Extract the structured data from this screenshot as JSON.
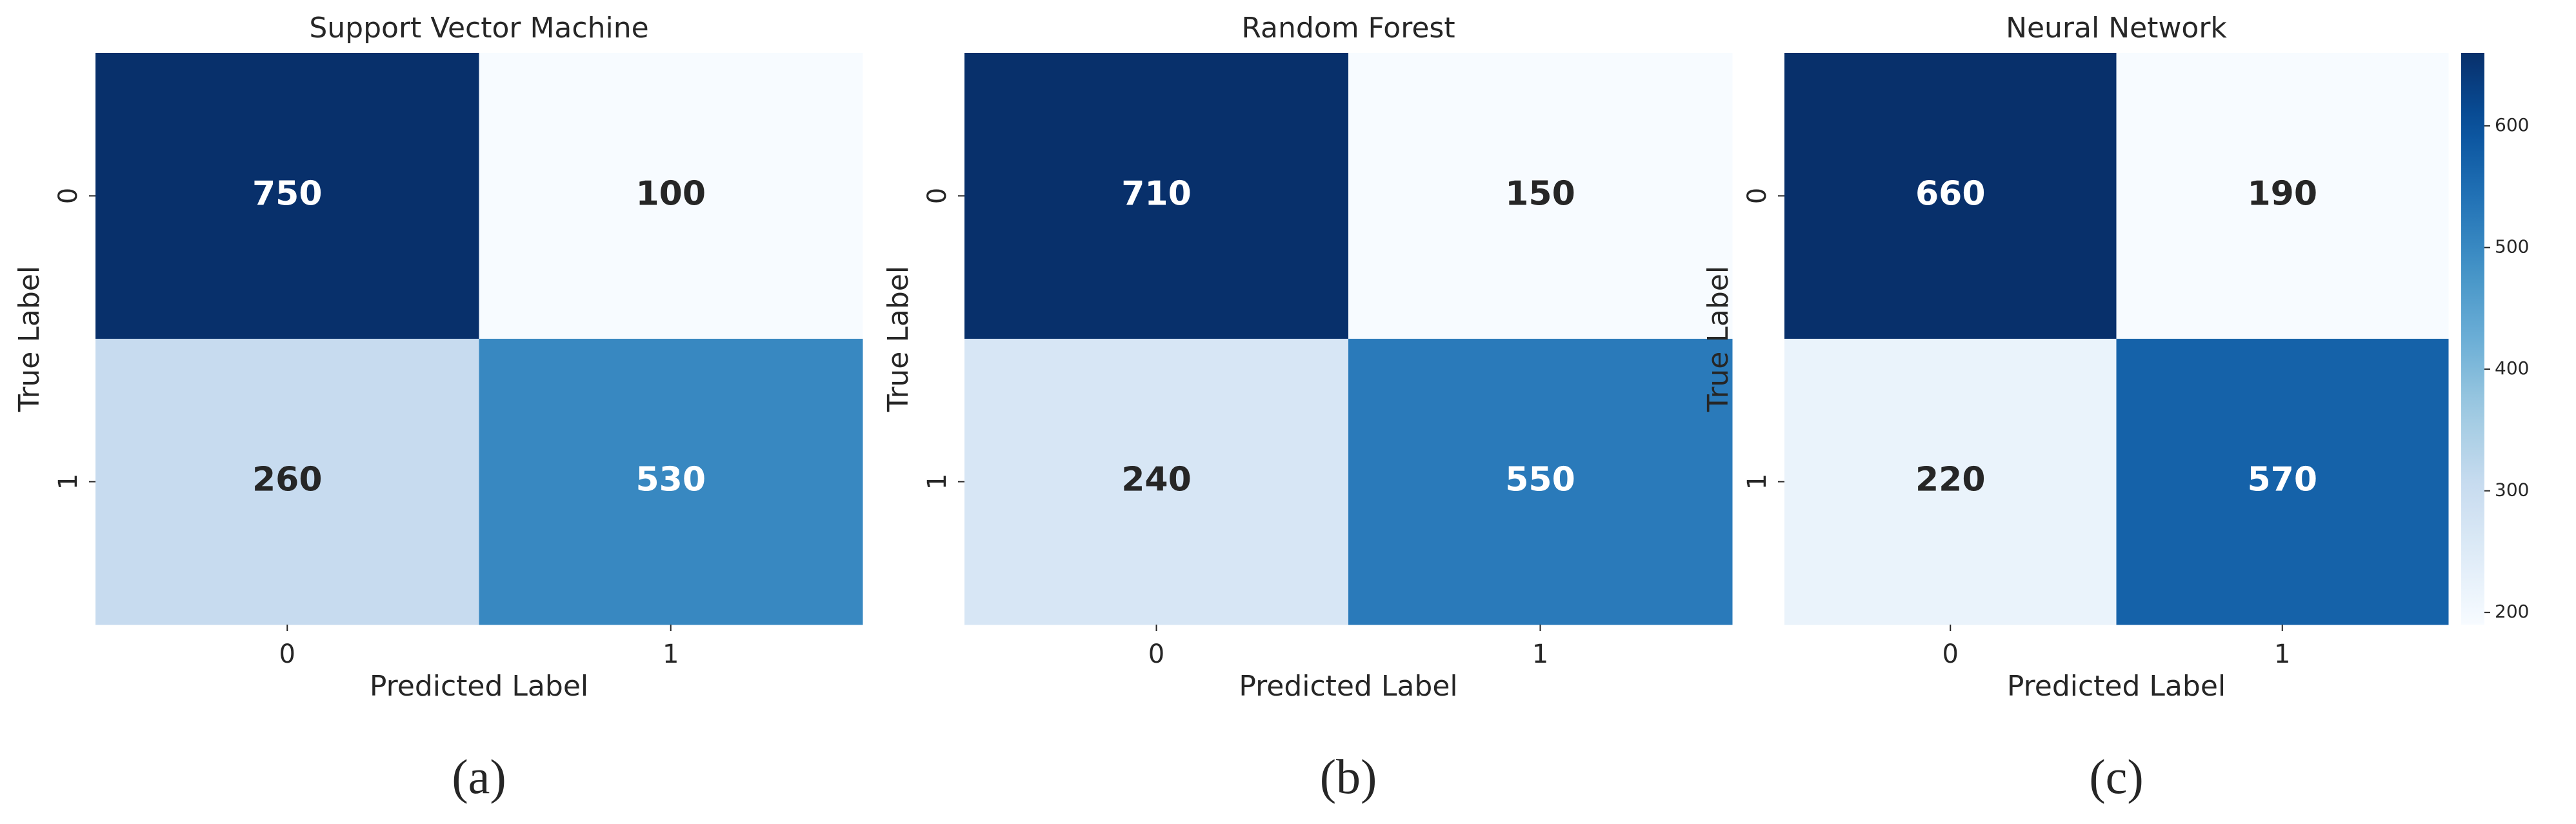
{
  "chart_data": [
    {
      "type": "heatmap",
      "title": "Support Vector Machine",
      "xlabel": "Predicted Label",
      "ylabel": "True Label",
      "x_categories": [
        "0",
        "1"
      ],
      "y_categories": [
        "0",
        "1"
      ],
      "values": [
        [
          750,
          100
        ],
        [
          260,
          530
        ]
      ],
      "cmap": "Blues",
      "caption": "(a)"
    },
    {
      "type": "heatmap",
      "title": "Random Forest",
      "xlabel": "Predicted Label",
      "ylabel": "True Label",
      "x_categories": [
        "0",
        "1"
      ],
      "y_categories": [
        "0",
        "1"
      ],
      "values": [
        [
          710,
          150
        ],
        [
          240,
          550
        ]
      ],
      "cmap": "Blues",
      "caption": "(b)"
    },
    {
      "type": "heatmap",
      "title": "Neural Network",
      "xlabel": "Predicted Label",
      "ylabel": "True Label",
      "x_categories": [
        "0",
        "1"
      ],
      "y_categories": [
        "0",
        "1"
      ],
      "values": [
        [
          660,
          190
        ],
        [
          220,
          570
        ]
      ],
      "cmap": "Blues",
      "caption": "(c)",
      "clim": [
        190,
        660
      ],
      "colorbar_ticks": [
        200,
        300,
        400,
        500,
        600
      ]
    }
  ]
}
